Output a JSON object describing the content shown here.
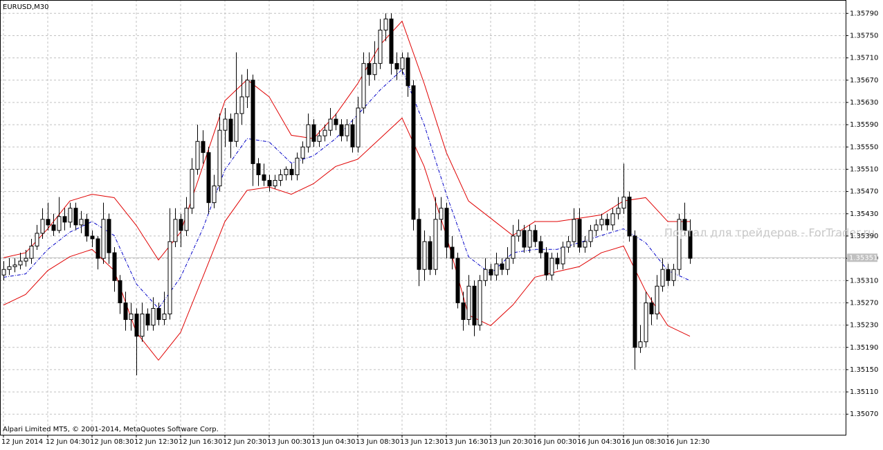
{
  "chart_data": {
    "type": "candlestick",
    "title": "EURUSD,M30",
    "footer": "Alpari Limited MT5, © 2001-2014, MetaQuotes Software Corp.",
    "watermark": "Портал для трейдеров - ForTrader.ru",
    "grid": true,
    "up_color": "#ffffff",
    "down_color": "#000000",
    "ylim": [
      1.35033,
      1.35814
    ],
    "xlim": [
      -0.625,
      152.125
    ],
    "last_price": 1.35351,
    "yticks": [
      {
        "value": 1.3507,
        "label": "1.35070"
      },
      {
        "value": 1.3511,
        "label": "1.35110"
      },
      {
        "value": 1.3515,
        "label": "1.35150"
      },
      {
        "value": 1.3519,
        "label": "1.35190"
      },
      {
        "value": 1.3523,
        "label": "1.35230"
      },
      {
        "value": 1.3527,
        "label": "1.35270"
      },
      {
        "value": 1.3531,
        "label": "1.35310"
      },
      {
        "value": 1.3535,
        "label": "1.35350"
      },
      {
        "value": 1.3539,
        "label": "1.35390"
      },
      {
        "value": 1.3543,
        "label": "1.35430"
      },
      {
        "value": 1.3547,
        "label": "1.35470"
      },
      {
        "value": 1.3551,
        "label": "1.35510"
      },
      {
        "value": 1.3555,
        "label": "1.35550"
      },
      {
        "value": 1.3559,
        "label": "1.35590"
      },
      {
        "value": 1.3563,
        "label": "1.35630"
      },
      {
        "value": 1.3567,
        "label": "1.35670"
      },
      {
        "value": 1.3571,
        "label": "1.35710"
      },
      {
        "value": 1.3575,
        "label": "1.35750"
      },
      {
        "value": 1.3579,
        "label": "1.35790"
      }
    ],
    "xticks": [
      {
        "value": 0,
        "label": "12 Jun 2014"
      },
      {
        "value": 8,
        "label": "12 Jun 04:30"
      },
      {
        "value": 16,
        "label": "12 Jun 08:30"
      },
      {
        "value": 24,
        "label": "12 Jun 12:30"
      },
      {
        "value": 32,
        "label": "12 Jun 16:30"
      },
      {
        "value": 40,
        "label": "12 Jun 20:30"
      },
      {
        "value": 48,
        "label": "13 Jun 00:30"
      },
      {
        "value": 56,
        "label": "13 Jun 04:30"
      },
      {
        "value": 64,
        "label": "13 Jun 08:30"
      },
      {
        "value": 72,
        "label": "13 Jun 12:30"
      },
      {
        "value": 80,
        "label": "13 Jun 16:30"
      },
      {
        "value": 88,
        "label": "13 Jun 20:30"
      },
      {
        "value": 96,
        "label": "16 Jun 00:30"
      },
      {
        "value": 104,
        "label": "16 Jun 04:30"
      },
      {
        "value": 112,
        "label": "16 Jun 08:30"
      },
      {
        "value": 120,
        "label": "16 Jun 12:30"
      }
    ],
    "ohlc": [
      [
        1.3532,
        1.35345,
        1.3531,
        1.3533
      ],
      [
        1.3533,
        1.3535,
        1.3532,
        1.35335
      ],
      [
        1.35335,
        1.3535,
        1.35325,
        1.35338
      ],
      [
        1.35338,
        1.3536,
        1.3533,
        1.35345
      ],
      [
        1.35345,
        1.35365,
        1.35335,
        1.3535
      ],
      [
        1.3535,
        1.35385,
        1.3534,
        1.35372
      ],
      [
        1.35372,
        1.3541,
        1.35365,
        1.35395
      ],
      [
        1.35395,
        1.3544,
        1.35385,
        1.3542
      ],
      [
        1.3542,
        1.3545,
        1.354,
        1.3541
      ],
      [
        1.3541,
        1.3543,
        1.3539,
        1.354
      ],
      [
        1.354,
        1.3546,
        1.35395,
        1.35425
      ],
      [
        1.35425,
        1.3544,
        1.354,
        1.35415
      ],
      [
        1.35415,
        1.3545,
        1.35405,
        1.3544
      ],
      [
        1.3544,
        1.3545,
        1.354,
        1.3541
      ],
      [
        1.3541,
        1.35435,
        1.35395,
        1.3542
      ],
      [
        1.3542,
        1.3543,
        1.3538,
        1.3539
      ],
      [
        1.3539,
        1.354,
        1.3537,
        1.35385
      ],
      [
        1.35385,
        1.3539,
        1.3533,
        1.3535
      ],
      [
        1.3535,
        1.3545,
        1.3534,
        1.3542
      ],
      [
        1.3542,
        1.3543,
        1.3534,
        1.3536
      ],
      [
        1.3536,
        1.3537,
        1.3529,
        1.3531
      ],
      [
        1.3531,
        1.3532,
        1.3525,
        1.3527
      ],
      [
        1.3527,
        1.3529,
        1.3522,
        1.3524
      ],
      [
        1.3524,
        1.3527,
        1.3522,
        1.3525
      ],
      [
        1.3525,
        1.3526,
        1.3514,
        1.3521
      ],
      [
        1.3521,
        1.3527,
        1.352,
        1.3525
      ],
      [
        1.3525,
        1.3526,
        1.3522,
        1.3523
      ],
      [
        1.3523,
        1.3528,
        1.3522,
        1.3526
      ],
      [
        1.3526,
        1.3527,
        1.3523,
        1.3524
      ],
      [
        1.3524,
        1.3529,
        1.3523,
        1.3525
      ],
      [
        1.3525,
        1.3544,
        1.3524,
        1.3538
      ],
      [
        1.3538,
        1.3544,
        1.3537,
        1.3542
      ],
      [
        1.3542,
        1.3543,
        1.3537,
        1.354
      ],
      [
        1.354,
        1.3546,
        1.3539,
        1.3544
      ],
      [
        1.3544,
        1.3553,
        1.3543,
        1.3551
      ],
      [
        1.3551,
        1.3559,
        1.355,
        1.3556
      ],
      [
        1.3556,
        1.3558,
        1.3552,
        1.3554
      ],
      [
        1.3554,
        1.3555,
        1.3543,
        1.3545
      ],
      [
        1.3545,
        1.355,
        1.3544,
        1.3548
      ],
      [
        1.3548,
        1.3561,
        1.3547,
        1.3558
      ],
      [
        1.3558,
        1.3562,
        1.3555,
        1.356
      ],
      [
        1.356,
        1.3561,
        1.3553,
        1.3556
      ],
      [
        1.3556,
        1.3572,
        1.3555,
        1.3561
      ],
      [
        1.3561,
        1.3568,
        1.3559,
        1.3564
      ],
      [
        1.3564,
        1.3569,
        1.3562,
        1.3567
      ],
      [
        1.3567,
        1.3568,
        1.3548,
        1.3552
      ],
      [
        1.3552,
        1.3553,
        1.3548,
        1.355
      ],
      [
        1.355,
        1.3552,
        1.3548,
        1.3549
      ],
      [
        1.3549,
        1.355,
        1.3547,
        1.3548
      ],
      [
        1.3548,
        1.355,
        1.35475,
        1.3549
      ],
      [
        1.3549,
        1.3551,
        1.3548,
        1.355
      ],
      [
        1.355,
        1.35515,
        1.3549,
        1.3551
      ],
      [
        1.3551,
        1.3552,
        1.3549,
        1.355
      ],
      [
        1.355,
        1.3554,
        1.3549,
        1.3553
      ],
      [
        1.3553,
        1.3556,
        1.3552,
        1.3555
      ],
      [
        1.3555,
        1.3561,
        1.3554,
        1.3559
      ],
      [
        1.3559,
        1.356,
        1.3555,
        1.3556
      ],
      [
        1.3556,
        1.3558,
        1.3555,
        1.3557
      ],
      [
        1.3557,
        1.3559,
        1.3556,
        1.3558
      ],
      [
        1.3558,
        1.3562,
        1.3557,
        1.356
      ],
      [
        1.356,
        1.3561,
        1.3558,
        1.3559
      ],
      [
        1.3559,
        1.356,
        1.3556,
        1.3557
      ],
      [
        1.3557,
        1.356,
        1.3556,
        1.3559
      ],
      [
        1.3559,
        1.356,
        1.3554,
        1.3555
      ],
      [
        1.3555,
        1.3564,
        1.3554,
        1.3562
      ],
      [
        1.3562,
        1.3572,
        1.3561,
        1.357
      ],
      [
        1.357,
        1.3572,
        1.3566,
        1.3568
      ],
      [
        1.3568,
        1.3574,
        1.3567,
        1.357
      ],
      [
        1.357,
        1.3578,
        1.3569,
        1.3576
      ],
      [
        1.3576,
        1.3579,
        1.3574,
        1.3578
      ],
      [
        1.3578,
        1.3579,
        1.3568,
        1.357
      ],
      [
        1.357,
        1.3572,
        1.3567,
        1.3569
      ],
      [
        1.3569,
        1.3572,
        1.3568,
        1.3571
      ],
      [
        1.3571,
        1.3572,
        1.3564,
        1.3566
      ],
      [
        1.3566,
        1.3567,
        1.354,
        1.3542
      ],
      [
        1.3542,
        1.3544,
        1.353,
        1.3533
      ],
      [
        1.3533,
        1.354,
        1.3531,
        1.3538
      ],
      [
        1.3538,
        1.3539,
        1.3532,
        1.3533
      ],
      [
        1.3533,
        1.3546,
        1.3532,
        1.3542
      ],
      [
        1.3542,
        1.3546,
        1.354,
        1.3544
      ],
      [
        1.3544,
        1.3545,
        1.3535,
        1.3537
      ],
      [
        1.3537,
        1.3539,
        1.3533,
        1.3535
      ],
      [
        1.3535,
        1.3536,
        1.3526,
        1.3527
      ],
      [
        1.3527,
        1.3529,
        1.3522,
        1.3524
      ],
      [
        1.3524,
        1.3532,
        1.3523,
        1.353
      ],
      [
        1.353,
        1.3531,
        1.3521,
        1.3523
      ],
      [
        1.3523,
        1.3532,
        1.3522,
        1.3531
      ],
      [
        1.3531,
        1.3535,
        1.353,
        1.3533
      ],
      [
        1.3533,
        1.3534,
        1.3531,
        1.3532
      ],
      [
        1.3532,
        1.3536,
        1.3531,
        1.3534
      ],
      [
        1.3534,
        1.3535,
        1.3532,
        1.3533
      ],
      [
        1.3533,
        1.3537,
        1.3532,
        1.3535
      ],
      [
        1.3535,
        1.3541,
        1.3534,
        1.3539
      ],
      [
        1.3539,
        1.3542,
        1.3538,
        1.354
      ],
      [
        1.354,
        1.3541,
        1.3536,
        1.3537
      ],
      [
        1.3537,
        1.3541,
        1.3536,
        1.354
      ],
      [
        1.354,
        1.3541,
        1.3537,
        1.3538
      ],
      [
        1.3538,
        1.3539,
        1.3535,
        1.3536
      ],
      [
        1.3536,
        1.3537,
        1.3531,
        1.3532
      ],
      [
        1.3532,
        1.3536,
        1.3531,
        1.3535
      ],
      [
        1.3535,
        1.3536,
        1.3533,
        1.3534
      ],
      [
        1.3534,
        1.3538,
        1.3533,
        1.3537
      ],
      [
        1.3537,
        1.3539,
        1.3536,
        1.3538
      ],
      [
        1.3538,
        1.3544,
        1.3537,
        1.3542
      ],
      [
        1.3542,
        1.3544,
        1.3536,
        1.3537
      ],
      [
        1.3537,
        1.3539,
        1.3536,
        1.3538
      ],
      [
        1.3538,
        1.3541,
        1.3537,
        1.354
      ],
      [
        1.354,
        1.3542,
        1.3539,
        1.3541
      ],
      [
        1.3541,
        1.3543,
        1.354,
        1.3542
      ],
      [
        1.3542,
        1.3543,
        1.354,
        1.3541
      ],
      [
        1.3541,
        1.3544,
        1.354,
        1.3543
      ],
      [
        1.3543,
        1.3546,
        1.3542,
        1.3544
      ],
      [
        1.3544,
        1.3552,
        1.3543,
        1.3546
      ],
      [
        1.3546,
        1.3547,
        1.3538,
        1.3539
      ],
      [
        1.3539,
        1.354,
        1.3515,
        1.3519
      ],
      [
        1.3519,
        1.3523,
        1.3518,
        1.352
      ],
      [
        1.352,
        1.3529,
        1.3519,
        1.3527
      ],
      [
        1.3527,
        1.3528,
        1.3523,
        1.3525
      ],
      [
        1.3525,
        1.3532,
        1.3524,
        1.353
      ],
      [
        1.353,
        1.3535,
        1.3529,
        1.3533
      ],
      [
        1.3533,
        1.3534,
        1.353,
        1.3531
      ],
      [
        1.3531,
        1.3534,
        1.353,
        1.3533
      ],
      [
        1.3533,
        1.3543,
        1.3532,
        1.3542
      ],
      [
        1.3542,
        1.3545,
        1.3539,
        1.354
      ],
      [
        1.354,
        1.3542,
        1.3534,
        1.3535
      ]
    ],
    "bands": {
      "band_color": "#e00000",
      "middle_color": "#0000c8",
      "x": [
        0,
        4,
        8,
        12,
        16,
        20,
        24,
        28,
        32,
        36,
        40,
        44,
        48,
        52,
        56,
        60,
        64,
        68,
        72,
        76,
        80,
        84,
        88,
        92,
        96,
        100,
        104,
        108,
        112,
        116,
        120,
        124
      ],
      "upper": [
        1.35351,
        1.3536,
        1.35403,
        1.35453,
        1.35465,
        1.35459,
        1.35409,
        1.35347,
        1.35397,
        1.35515,
        1.35633,
        1.35671,
        1.3564,
        1.35571,
        1.35565,
        1.35608,
        1.35664,
        1.35733,
        1.35776,
        1.35664,
        1.3554,
        1.35453,
        1.35422,
        1.35391,
        1.35416,
        1.35416,
        1.35422,
        1.35428,
        1.35453,
        1.35459,
        1.35416,
        1.35416
      ],
      "middle": [
        1.35316,
        1.35322,
        1.35366,
        1.35397,
        1.35416,
        1.35391,
        1.35304,
        1.3526,
        1.35316,
        1.35403,
        1.35509,
        1.35565,
        1.35559,
        1.35521,
        1.35534,
        1.35565,
        1.35608,
        1.35652,
        1.35689,
        1.3559,
        1.35465,
        1.35353,
        1.35322,
        1.3536,
        1.35366,
        1.35366,
        1.35378,
        1.35391,
        1.35403,
        1.35378,
        1.35328,
        1.3531
      ],
      "lower": [
        1.35266,
        1.35285,
        1.35328,
        1.35353,
        1.35366,
        1.35328,
        1.35217,
        1.35167,
        1.35217,
        1.35316,
        1.35416,
        1.35472,
        1.35478,
        1.35465,
        1.35484,
        1.35515,
        1.35528,
        1.35565,
        1.35602,
        1.35515,
        1.35391,
        1.35248,
        1.35229,
        1.35266,
        1.35316,
        1.35326,
        1.35335,
        1.3536,
        1.35372,
        1.35291,
        1.35229,
        1.3521
      ]
    }
  }
}
